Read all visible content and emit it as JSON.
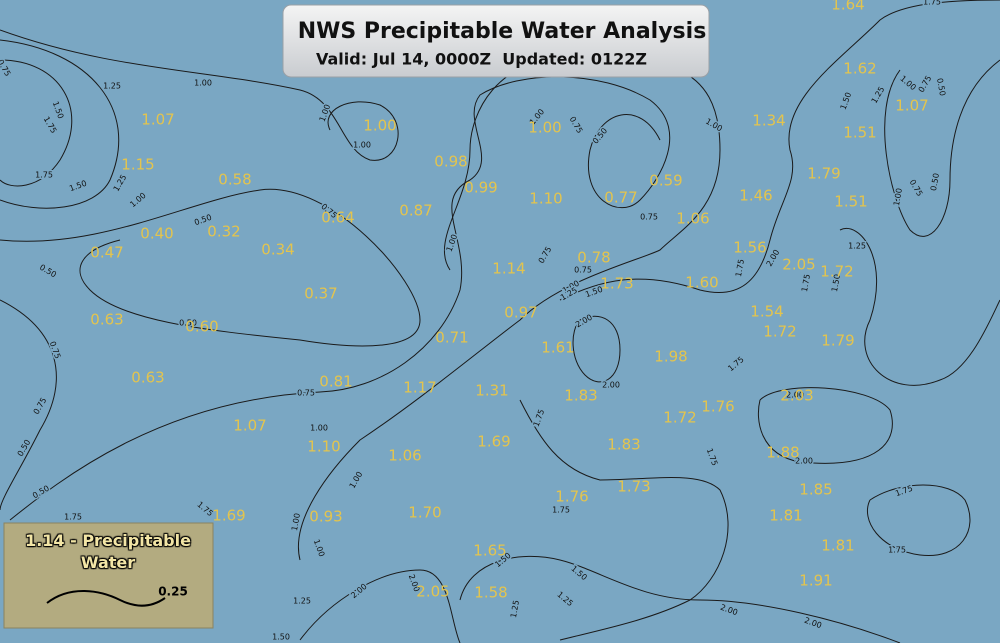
{
  "header": {
    "title": "NWS Precipitable Water Analysis",
    "subtitle": "Valid: Jul 14, 0000Z  Updated: 0122Z"
  },
  "stations": [
    "1.64",
    "1.07",
    "1.00",
    "1.00",
    "1.34",
    "1.62",
    "1.07",
    "1.51",
    "1.15",
    "0.98",
    "0.58",
    "0.99",
    "0.59",
    "1.79",
    "1.10",
    "0.77",
    "1.46",
    "1.51",
    "0.64",
    "0.87",
    "1.06",
    "0.40",
    "0.32",
    "0.47",
    "0.34",
    "1.56",
    "2.05",
    "1.72",
    "0.78",
    "1.14",
    "1.73",
    "1.60",
    "0.37",
    "0.63",
    "0.60",
    "0.97",
    "1.54",
    "1.72",
    "0.71",
    "1.79",
    "1.61",
    "1.98",
    "0.63",
    "0.81",
    "1.17",
    "1.31",
    "1.83",
    "2.03",
    "1.76",
    "1.72",
    "1.07",
    "1.10",
    "1.69",
    "1.83",
    "1.06",
    "1.88",
    "1.73",
    "1.85",
    "1.76",
    "1.69",
    "0.93",
    "1.70",
    "1.81",
    "1.81",
    "1.65",
    "1.91",
    "2.05",
    "1.58"
  ],
  "contour_labels": [
    "1.25",
    "1.00",
    "1.50",
    "1.75",
    "1.75",
    "1.50",
    "1.25",
    "1.00",
    "0.75",
    "1.00",
    "1.00",
    "1.00",
    "0.75",
    "0.50",
    "1.00",
    "0.75",
    "0.50",
    "0.75",
    "0.50",
    "0.75",
    "0.75",
    "1.00",
    "1.25",
    "1.50",
    "2.00",
    "1.75",
    "2.00",
    "1.75",
    "1.50",
    "1.25",
    "1.00",
    "0.75",
    "0.50",
    "1.50",
    "1.25",
    "1.00",
    "0.75",
    "0.50",
    "1.00",
    "0.50",
    "0.75",
    "0.75",
    "1.00",
    "0.75",
    "0.50",
    "0.50",
    "1.75",
    "2.00",
    "1.75",
    "1.75",
    "1.75",
    "2.00",
    "2.00",
    "1.75",
    "1.75",
    "1.75",
    "1.00",
    "1.00",
    "1.00",
    "1.25",
    "2.00",
    "2.00",
    "1.50",
    "1.50",
    "1.25",
    "1.25",
    "1.50",
    "2.00",
    "2.00",
    "1.75",
    "0.75",
    "1.75"
  ],
  "legend": {
    "title": "1.14 - Precipitable Water",
    "contour_label": "0.25"
  }
}
